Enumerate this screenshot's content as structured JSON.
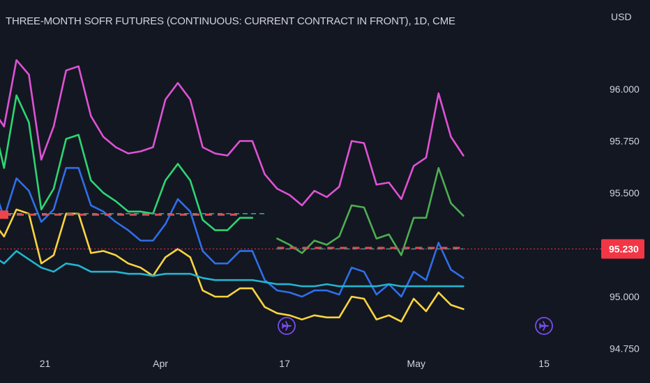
{
  "header": {
    "title": "THREE-MONTH SOFR FUTURES (CONTINUOUS: CURRENT CONTRACT IN FRONT), 1D, CME",
    "currency": "USD"
  },
  "colors": {
    "background": "#131722",
    "magenta": "#e052d5",
    "green": "#2ed573",
    "blue": "#2f6fe8",
    "yellow": "#fcd53f",
    "cyan": "#22b5cf",
    "olive_green": "#4caf50",
    "red_line": "#f0444c",
    "teal_dash": "#26a69a",
    "tag": "#f23645",
    "event_icon": "#7b4cf0"
  },
  "chart_data": {
    "type": "line",
    "x_ticks": [
      "21",
      "Apr",
      "17",
      "May",
      "15"
    ],
    "y_ticks": [
      "96.000",
      "95.750",
      "95.500",
      "95.000",
      "94.750"
    ],
    "ylim": [
      94.73,
      96.28
    ],
    "current_price": "95.230",
    "event_icons": [
      "airplane-icon",
      "airplane-icon"
    ],
    "series": [
      {
        "color_key": "magenta",
        "values": [
          95.91,
          95.82,
          96.14,
          96.07,
          95.66,
          95.82,
          96.09,
          96.11,
          95.87,
          95.77,
          95.72,
          95.69,
          95.7,
          95.72,
          95.95,
          96.03,
          95.95,
          95.72,
          95.69,
          95.68,
          95.75,
          95.75,
          95.59,
          95.52,
          95.49,
          95.44,
          95.51,
          95.48,
          95.53,
          95.75,
          95.74,
          95.54,
          95.55,
          95.47,
          95.63,
          95.67,
          95.98,
          95.77,
          95.68
        ]
      },
      {
        "color_key": "green",
        "values": [
          95.88,
          95.62,
          95.97,
          95.84,
          95.42,
          95.52,
          95.76,
          95.78,
          95.56,
          95.5,
          95.46,
          95.41,
          95.41,
          95.4,
          95.56,
          95.64,
          95.56,
          95.37,
          95.32,
          95.32,
          95.38,
          95.38,
          null,
          null,
          null,
          null,
          null,
          null,
          null,
          null,
          null,
          null,
          null,
          null,
          null,
          null,
          null,
          null,
          null
        ]
      },
      {
        "color_key": "olive_green",
        "values": [
          null,
          null,
          null,
          null,
          null,
          null,
          null,
          null,
          null,
          null,
          null,
          null,
          null,
          null,
          null,
          null,
          null,
          null,
          null,
          null,
          null,
          null,
          null,
          95.28,
          95.25,
          95.21,
          95.27,
          95.25,
          95.29,
          95.44,
          95.43,
          95.28,
          95.3,
          95.2,
          95.38,
          95.38,
          95.62,
          95.45,
          95.39
        ]
      },
      {
        "color_key": "blue",
        "values": [
          95.56,
          95.38,
          95.57,
          95.51,
          95.36,
          95.42,
          95.62,
          95.62,
          95.44,
          95.41,
          95.36,
          95.32,
          95.27,
          95.27,
          95.35,
          95.47,
          95.41,
          95.22,
          95.16,
          95.16,
          95.22,
          95.22,
          95.08,
          95.03,
          95.02,
          95.0,
          95.03,
          95.03,
          95.01,
          95.14,
          95.12,
          95.01,
          95.06,
          95.0,
          95.12,
          95.08,
          95.26,
          95.13,
          95.09
        ]
      },
      {
        "color_key": "yellow",
        "values": [
          95.37,
          95.29,
          95.42,
          95.4,
          95.16,
          95.2,
          95.4,
          95.4,
          95.21,
          95.22,
          95.2,
          95.16,
          95.14,
          95.1,
          95.19,
          95.23,
          95.19,
          95.03,
          95.0,
          95.0,
          95.04,
          95.04,
          94.95,
          94.92,
          94.91,
          94.89,
          94.91,
          94.9,
          94.9,
          95.0,
          94.99,
          94.89,
          94.91,
          94.88,
          94.99,
          94.93,
          95.02,
          94.96,
          94.94
        ]
      },
      {
        "color_key": "cyan",
        "values": [
          95.2,
          95.16,
          95.22,
          95.18,
          95.14,
          95.12,
          95.16,
          95.15,
          95.12,
          95.12,
          95.12,
          95.11,
          95.11,
          95.1,
          95.11,
          95.11,
          95.11,
          95.09,
          95.08,
          95.08,
          95.08,
          95.08,
          95.07,
          95.06,
          95.06,
          95.05,
          95.05,
          95.06,
          95.05,
          95.05,
          95.05,
          95.05,
          95.06,
          95.05,
          95.05,
          95.05,
          95.05,
          95.05,
          95.05
        ]
      }
    ],
    "reference_lines": [
      {
        "color_key": "red_line",
        "value": 95.395,
        "from": 0,
        "to": 20,
        "style": "dash-thick"
      },
      {
        "color_key": "teal_dash",
        "value": 95.4,
        "from": 0,
        "to": 22,
        "style": "dash"
      },
      {
        "color_key": "red_line",
        "value": 95.235,
        "from": 23,
        "to": 38,
        "style": "dash-thick"
      },
      {
        "color_key": "teal_dash",
        "value": 95.23,
        "from": 23,
        "to": 38,
        "style": "dash"
      }
    ]
  }
}
